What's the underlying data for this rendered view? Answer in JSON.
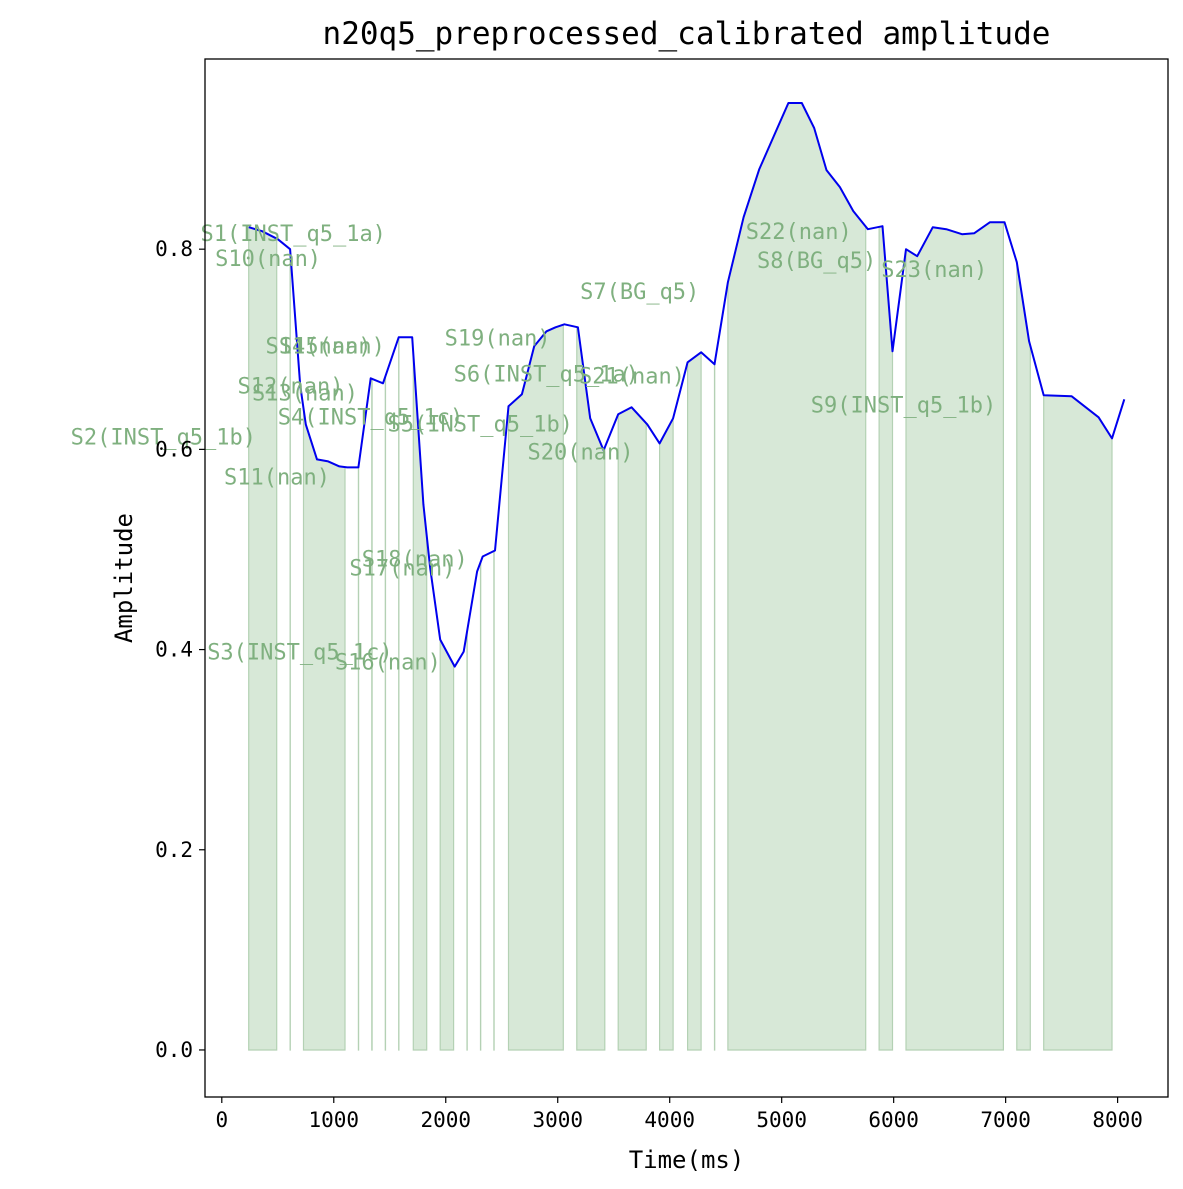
{
  "chart_data": {
    "type": "area",
    "title": "n20q5_preprocessed_calibrated amplitude",
    "xlabel": "Time(ms)",
    "ylabel": "Amplitude",
    "xlim": [
      -150,
      8450
    ],
    "ylim": [
      -0.047,
      0.99
    ],
    "x_ticks": [
      0,
      1000,
      2000,
      3000,
      4000,
      5000,
      6000,
      7000,
      8000
    ],
    "y_ticks": [
      0.0,
      0.2,
      0.4,
      0.6,
      0.8
    ],
    "y_tick_labels": [
      "0.0",
      "0.2",
      "0.4",
      "0.6",
      "0.8"
    ],
    "grid": false,
    "colors": {
      "line": "#0000ee",
      "fill": "#d7e8d7",
      "fill_edge": "#b4d1b4",
      "label": "#7fb07f"
    },
    "series": [
      {
        "x": [
          240,
          360,
          500,
          610,
          700,
          750,
          850,
          950,
          1050,
          1120,
          1220,
          1330,
          1440,
          1580,
          1700,
          1800,
          1860,
          1950,
          2080,
          2160,
          2280,
          2330,
          2440,
          2560,
          2680,
          2790,
          2900,
          2980,
          3060,
          3180,
          3290,
          3410,
          3540,
          3660,
          3800,
          3910,
          4030,
          4160,
          4280,
          4400,
          4520,
          4660,
          4800,
          4930,
          5060,
          5180,
          5290,
          5400,
          5520,
          5640,
          5770,
          5900,
          5990,
          6110,
          6210,
          6350,
          6470,
          6610,
          6720,
          6860,
          6990,
          7100,
          7210,
          7340,
          7590,
          7830,
          7950,
          8060
        ],
        "y": [
          0.822,
          0.818,
          0.81,
          0.8,
          0.664,
          0.625,
          0.59,
          0.588,
          0.583,
          0.582,
          0.582,
          0.671,
          0.666,
          0.712,
          0.712,
          0.545,
          0.482,
          0.41,
          0.383,
          0.398,
          0.478,
          0.493,
          0.499,
          0.643,
          0.655,
          0.703,
          0.718,
          0.722,
          0.725,
          0.722,
          0.631,
          0.599,
          0.635,
          0.642,
          0.625,
          0.606,
          0.631,
          0.687,
          0.697,
          0.685,
          0.767,
          0.832,
          0.88,
          0.913,
          0.946,
          0.946,
          0.921,
          0.879,
          0.862,
          0.838,
          0.82,
          0.823,
          0.698,
          0.8,
          0.793,
          0.822,
          0.82,
          0.815,
          0.816,
          0.827,
          0.827,
          0.787,
          0.708,
          0.654,
          0.653,
          0.632,
          0.611,
          0.65
        ]
      }
    ],
    "segments": [
      {
        "start": 240,
        "end": 490
      },
      {
        "start": 610,
        "end": 612
      },
      {
        "start": 730,
        "end": 1100
      },
      {
        "start": 1220,
        "end": 1222
      },
      {
        "start": 1340,
        "end": 1342
      },
      {
        "start": 1460,
        "end": 1462
      },
      {
        "start": 1580,
        "end": 1582
      },
      {
        "start": 1710,
        "end": 1830
      },
      {
        "start": 1950,
        "end": 2070
      },
      {
        "start": 2190,
        "end": 2192
      },
      {
        "start": 2310,
        "end": 2312
      },
      {
        "start": 2430,
        "end": 2432
      },
      {
        "start": 2560,
        "end": 3050
      },
      {
        "start": 3170,
        "end": 3420
      },
      {
        "start": 3540,
        "end": 3790
      },
      {
        "start": 3910,
        "end": 4030
      },
      {
        "start": 4160,
        "end": 4280
      },
      {
        "start": 4400,
        "end": 4402
      },
      {
        "start": 4520,
        "end": 5750
      },
      {
        "start": 5870,
        "end": 5990
      },
      {
        "start": 6110,
        "end": 6980
      },
      {
        "start": 7100,
        "end": 7220
      },
      {
        "start": 7340,
        "end": 7950
      }
    ],
    "annotations": [
      {
        "text": "S1(INST_q5_1a)",
        "x": -190,
        "y": 0.808
      },
      {
        "text": "S10(nan)",
        "x": -60,
        "y": 0.783
      },
      {
        "text": "S2(INST_q5_1b)",
        "x": -1350,
        "y": 0.605
      },
      {
        "text": "S11(nan)",
        "x": 20,
        "y": 0.565
      },
      {
        "text": "S3(INST_q5_1c)",
        "x": -130,
        "y": 0.39
      },
      {
        "text": "S12(nan)",
        "x": 140,
        "y": 0.656
      },
      {
        "text": "S13(nan)",
        "x": 270,
        "y": 0.649
      },
      {
        "text": "S14(nan)",
        "x": 390,
        "y": 0.696
      },
      {
        "text": "S15(nan)",
        "x": 510,
        "y": 0.696
      },
      {
        "text": "S4(INST_q5_1c)",
        "x": 500,
        "y": 0.625
      },
      {
        "text": "S16(nan)",
        "x": 1010,
        "y": 0.38
      },
      {
        "text": "S17(nan)",
        "x": 1140,
        "y": 0.474
      },
      {
        "text": "S18(nan)",
        "x": 1250,
        "y": 0.483
      },
      {
        "text": "S5(INST_q5_1b)",
        "x": 1480,
        "y": 0.618
      },
      {
        "text": "S19(nan)",
        "x": 1990,
        "y": 0.704
      },
      {
        "text": "S6(INST_q5_1a)",
        "x": 2070,
        "y": 0.668
      },
      {
        "text": "S20(nan)",
        "x": 2730,
        "y": 0.59
      },
      {
        "text": "S21(nan)",
        "x": 3190,
        "y": 0.666
      },
      {
        "text": "S7(BG_q5)",
        "x": 3200,
        "y": 0.75
      },
      {
        "text": "S22(nan)",
        "x": 4680,
        "y": 0.81
      },
      {
        "text": "S8(BG_q5)",
        "x": 4780,
        "y": 0.781
      },
      {
        "text": "S23(nan)",
        "x": 5890,
        "y": 0.772
      },
      {
        "text": "S9(INST_q5_1b)",
        "x": 5260,
        "y": 0.637
      }
    ]
  }
}
